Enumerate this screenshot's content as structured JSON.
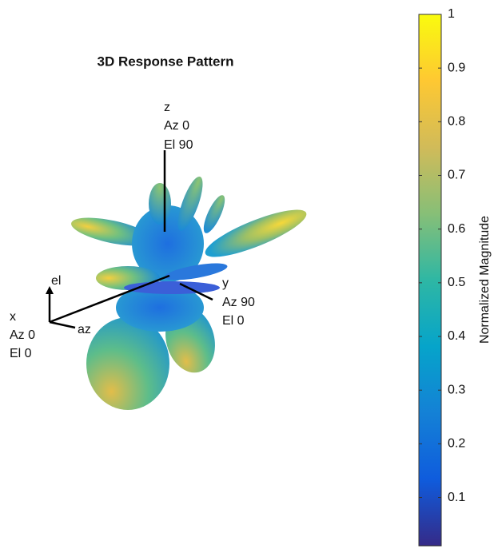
{
  "chart_data": {
    "type": "surface3d",
    "title": "3D Response Pattern",
    "axis_labels": {
      "x": [
        "x",
        "Az 0",
        "El 0"
      ],
      "y": [
        "y",
        "Az 90",
        "El 0"
      ],
      "z": [
        "z",
        "Az 0",
        "El 90"
      ],
      "el": "el",
      "az": "az"
    },
    "colorbar": {
      "label": "Normalized Magnitude",
      "clim": [
        0.01,
        1
      ],
      "ticks": [
        0.1,
        0.2,
        0.3,
        0.4,
        0.5,
        0.6,
        0.7,
        0.8,
        0.9,
        1
      ],
      "colormap": [
        "#352a87",
        "#0f5cdd",
        "#1481d6",
        "#06a4ca",
        "#2eb7a4",
        "#87bf77",
        "#d1bb59",
        "#fec832",
        "#f9fb0e"
      ]
    }
  }
}
